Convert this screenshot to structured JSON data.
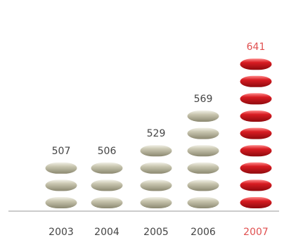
{
  "chart_data": {
    "type": "bar",
    "categories": [
      "2003",
      "2004",
      "2005",
      "2006",
      "2007"
    ],
    "values": [
      507,
      506,
      529,
      569,
      641
    ],
    "value_labels": [
      "507",
      "506",
      "529",
      "569",
      "641"
    ],
    "title": "",
    "xlabel": "",
    "ylabel": "",
    "grid": false,
    "highlight_category": "2007",
    "colors": {
      "normal": "#a8a48a",
      "highlight": "#c0161a",
      "normal_label": "#444444",
      "highlight_label": "#e05050",
      "axis": "#999999"
    }
  }
}
